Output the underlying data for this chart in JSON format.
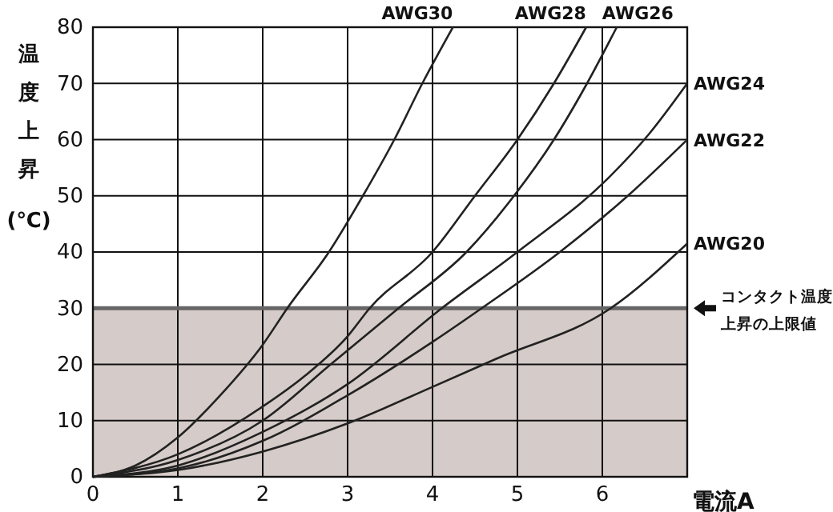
{
  "chart_data": {
    "type": "line",
    "xlabel": "電流A",
    "ylabel": "温度上昇(℃)",
    "xlim": [
      0,
      7
    ],
    "xticks": [
      0,
      1,
      2,
      3,
      4,
      5,
      6
    ],
    "ylim": [
      0,
      80
    ],
    "yticks": [
      0,
      10,
      20,
      30,
      40,
      50,
      60,
      70,
      80
    ],
    "grid": true,
    "line_style": "solid",
    "marker": "none",
    "bands": [
      {
        "axis": "y",
        "from": 0,
        "to": 30,
        "label": "コンタクト温度上昇の上限値",
        "color": "#d5cbc8"
      }
    ],
    "ref_lines": [
      {
        "axis": "y",
        "value": 30,
        "color": "#666666"
      }
    ],
    "series": [
      {
        "name": "AWG30",
        "color": "#222222",
        "x": [
          0,
          0.5,
          1,
          1.5,
          2,
          2.29,
          2.78,
          3.18,
          3.55,
          3.88,
          4.24
        ],
        "values": [
          0,
          2,
          7,
          14.5,
          23.5,
          30,
          40,
          50,
          60,
          70,
          80
        ]
      },
      {
        "name": "AWG28",
        "color": "#222222",
        "x": [
          0,
          1,
          2,
          2.5,
          3,
          3.26,
          4.0,
          4.5,
          5.0,
          5.43,
          5.81
        ],
        "values": [
          0,
          4,
          12.5,
          18,
          25,
          30,
          40,
          50,
          60,
          70,
          80
        ]
      },
      {
        "name": "AWG26",
        "color": "#222222",
        "x": [
          0,
          1,
          2,
          2.8,
          3.6,
          4.4,
          4.96,
          5.43,
          5.82,
          6.17
        ],
        "values": [
          0,
          3,
          10,
          20,
          30,
          40,
          50,
          60,
          70,
          80
        ]
      },
      {
        "name": "AWG24",
        "color": "#222222",
        "x": [
          0,
          1,
          2,
          3,
          4.11,
          5,
          6.06,
          6.55,
          7
        ],
        "values": [
          0,
          2,
          8,
          16.5,
          30,
          40,
          53,
          61,
          70
        ]
      },
      {
        "name": "AWG22",
        "color": "#222222",
        "x": [
          0,
          1,
          2,
          3,
          4,
          4.58,
          5.5,
          6.3,
          7
        ],
        "values": [
          0,
          1.5,
          6.4,
          14.5,
          24,
          30,
          40,
          50,
          60
        ]
      },
      {
        "name": "AWG20",
        "color": "#222222",
        "x": [
          0,
          1,
          2,
          3,
          4,
          4.75,
          6.1,
          7
        ],
        "values": [
          0,
          1.2,
          4.5,
          9.5,
          16,
          21,
          30,
          41.5
        ]
      }
    ]
  }
}
